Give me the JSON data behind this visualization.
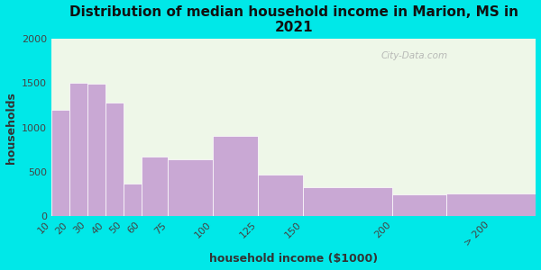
{
  "title": "Distribution of median household income in Marion, MS in\n2021",
  "xlabel": "household income ($1000)",
  "ylabel": "households",
  "bar_labels": [
    "10",
    "20",
    "30",
    "40",
    "50",
    "60",
    "75",
    "100",
    "125",
    "150",
    "200",
    "> 200"
  ],
  "bar_values": [
    1200,
    1500,
    1490,
    1280,
    370,
    670,
    640,
    900,
    470,
    330,
    240,
    250
  ],
  "bar_color": "#c9a8d4",
  "background_outer": "#00e8e8",
  "background_inner": "#eef7e8",
  "ylim": [
    0,
    2000
  ],
  "yticks": [
    0,
    500,
    1000,
    1500,
    2000
  ],
  "title_fontsize": 11,
  "label_fontsize": 9,
  "tick_fontsize": 8,
  "bar_left_edges": [
    10,
    20,
    30,
    40,
    50,
    60,
    75,
    100,
    125,
    150,
    200,
    230
  ],
  "bar_widths": [
    10,
    10,
    10,
    10,
    10,
    15,
    25,
    25,
    25,
    50,
    30,
    50
  ],
  "xlim": [
    10,
    280
  ],
  "xtick_positions": [
    10,
    20,
    30,
    40,
    50,
    60,
    75,
    100,
    125,
    150,
    200,
    255
  ],
  "watermark": "City-Data.com"
}
